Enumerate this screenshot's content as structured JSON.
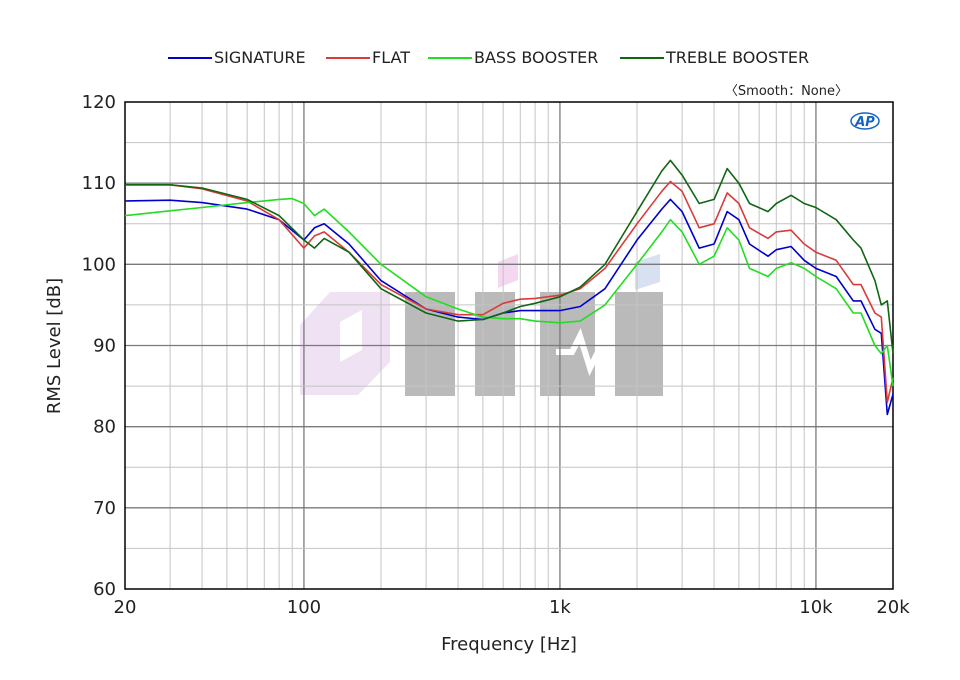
{
  "chart_data": {
    "type": "line",
    "title": "",
    "xlabel": "Frequency [Hz]",
    "ylabel": "RMS Level [dB]",
    "xscale": "log",
    "xlim": [
      20,
      20000
    ],
    "ylim": [
      60,
      120
    ],
    "grid": true,
    "legend_position": "top",
    "annotation": "〈Smooth：None〉",
    "logo_text": "AP",
    "x_ticks": [
      {
        "value": 20,
        "label": "20"
      },
      {
        "value": 100,
        "label": "100"
      },
      {
        "value": 1000,
        "label": "1k"
      },
      {
        "value": 10000,
        "label": "10k"
      },
      {
        "value": 20000,
        "label": "20k"
      }
    ],
    "y_ticks": [
      {
        "value": 60,
        "label": "60"
      },
      {
        "value": 70,
        "label": "70"
      },
      {
        "value": 80,
        "label": "80"
      },
      {
        "value": 90,
        "label": "90"
      },
      {
        "value": 100,
        "label": "100"
      },
      {
        "value": 110,
        "label": "110"
      },
      {
        "value": 120,
        "label": "120"
      }
    ],
    "series": [
      {
        "name": "SIGNATURE",
        "color": "#0000cc",
        "points": [
          [
            20,
            107.8
          ],
          [
            30,
            107.9
          ],
          [
            40,
            107.6
          ],
          [
            60,
            106.8
          ],
          [
            80,
            105.5
          ],
          [
            100,
            103.0
          ],
          [
            110,
            104.5
          ],
          [
            120,
            105.0
          ],
          [
            150,
            102.5
          ],
          [
            200,
            98.0
          ],
          [
            300,
            94.5
          ],
          [
            400,
            93.5
          ],
          [
            500,
            93.2
          ],
          [
            600,
            94.0
          ],
          [
            700,
            94.3
          ],
          [
            800,
            94.3
          ],
          [
            1000,
            94.3
          ],
          [
            1200,
            94.8
          ],
          [
            1500,
            97.0
          ],
          [
            2000,
            103.0
          ],
          [
            2500,
            106.8
          ],
          [
            2700,
            108.0
          ],
          [
            3000,
            106.5
          ],
          [
            3500,
            102.0
          ],
          [
            4000,
            102.5
          ],
          [
            4500,
            106.5
          ],
          [
            5000,
            105.5
          ],
          [
            5500,
            102.5
          ],
          [
            6500,
            101.0
          ],
          [
            7000,
            101.8
          ],
          [
            8000,
            102.2
          ],
          [
            9000,
            100.5
          ],
          [
            10000,
            99.5
          ],
          [
            12000,
            98.5
          ],
          [
            14000,
            95.5
          ],
          [
            15000,
            95.5
          ],
          [
            17000,
            92.0
          ],
          [
            18000,
            91.5
          ],
          [
            19000,
            81.5
          ],
          [
            20000,
            84.0
          ]
        ]
      },
      {
        "name": "FLAT",
        "color": "#d93b3b",
        "points": [
          [
            20,
            109.8
          ],
          [
            30,
            109.8
          ],
          [
            40,
            109.3
          ],
          [
            60,
            107.8
          ],
          [
            80,
            105.5
          ],
          [
            100,
            102.0
          ],
          [
            110,
            103.5
          ],
          [
            120,
            104.0
          ],
          [
            150,
            101.5
          ],
          [
            200,
            97.5
          ],
          [
            300,
            94.5
          ],
          [
            400,
            93.8
          ],
          [
            500,
            93.8
          ],
          [
            600,
            95.2
          ],
          [
            700,
            95.7
          ],
          [
            800,
            95.8
          ],
          [
            1000,
            96.2
          ],
          [
            1200,
            97.0
          ],
          [
            1500,
            99.5
          ],
          [
            2000,
            105.0
          ],
          [
            2500,
            109.0
          ],
          [
            2700,
            110.2
          ],
          [
            3000,
            109.0
          ],
          [
            3500,
            104.5
          ],
          [
            4000,
            105.0
          ],
          [
            4500,
            108.8
          ],
          [
            5000,
            107.5
          ],
          [
            5500,
            104.5
          ],
          [
            6500,
            103.2
          ],
          [
            7000,
            104.0
          ],
          [
            8000,
            104.2
          ],
          [
            9000,
            102.5
          ],
          [
            10000,
            101.5
          ],
          [
            12000,
            100.5
          ],
          [
            14000,
            97.5
          ],
          [
            15000,
            97.5
          ],
          [
            17000,
            94.0
          ],
          [
            18000,
            93.5
          ],
          [
            19000,
            83.0
          ],
          [
            20000,
            86.0
          ]
        ]
      },
      {
        "name": "BASS BOOSTER",
        "color": "#22dd22",
        "points": [
          [
            20,
            106.0
          ],
          [
            30,
            106.6
          ],
          [
            40,
            107.0
          ],
          [
            60,
            107.6
          ],
          [
            80,
            108.0
          ],
          [
            90,
            108.1
          ],
          [
            100,
            107.5
          ],
          [
            110,
            106.0
          ],
          [
            120,
            106.8
          ],
          [
            150,
            104.0
          ],
          [
            200,
            100.0
          ],
          [
            300,
            96.0
          ],
          [
            400,
            94.5
          ],
          [
            500,
            93.5
          ],
          [
            600,
            93.3
          ],
          [
            700,
            93.3
          ],
          [
            800,
            93.0
          ],
          [
            1000,
            92.8
          ],
          [
            1200,
            93.0
          ],
          [
            1500,
            95.0
          ],
          [
            2000,
            100.0
          ],
          [
            2500,
            104.0
          ],
          [
            2700,
            105.5
          ],
          [
            3000,
            104.0
          ],
          [
            3500,
            100.0
          ],
          [
            4000,
            101.0
          ],
          [
            4500,
            104.5
          ],
          [
            5000,
            103.0
          ],
          [
            5500,
            99.5
          ],
          [
            6500,
            98.5
          ],
          [
            7000,
            99.5
          ],
          [
            8000,
            100.2
          ],
          [
            9000,
            99.5
          ],
          [
            10000,
            98.5
          ],
          [
            12000,
            97.0
          ],
          [
            14000,
            94.0
          ],
          [
            15000,
            94.0
          ],
          [
            17000,
            90.0
          ],
          [
            18000,
            89.0
          ],
          [
            19000,
            90.0
          ],
          [
            20000,
            85.0
          ]
        ]
      },
      {
        "name": "TREBLE BOOSTER",
        "color": "#116611",
        "points": [
          [
            20,
            109.8
          ],
          [
            30,
            109.8
          ],
          [
            40,
            109.4
          ],
          [
            60,
            108.0
          ],
          [
            80,
            106.0
          ],
          [
            100,
            103.0
          ],
          [
            110,
            102.0
          ],
          [
            120,
            103.2
          ],
          [
            150,
            101.5
          ],
          [
            200,
            97.0
          ],
          [
            300,
            94.0
          ],
          [
            400,
            93.0
          ],
          [
            500,
            93.2
          ],
          [
            600,
            94.0
          ],
          [
            700,
            94.8
          ],
          [
            800,
            95.2
          ],
          [
            1000,
            96.0
          ],
          [
            1200,
            97.2
          ],
          [
            1500,
            100.0
          ],
          [
            2000,
            106.5
          ],
          [
            2500,
            111.5
          ],
          [
            2700,
            112.8
          ],
          [
            3000,
            111.0
          ],
          [
            3500,
            107.5
          ],
          [
            4000,
            108.0
          ],
          [
            4500,
            111.8
          ],
          [
            5000,
            110.0
          ],
          [
            5500,
            107.5
          ],
          [
            6500,
            106.5
          ],
          [
            7000,
            107.5
          ],
          [
            8000,
            108.5
          ],
          [
            9000,
            107.5
          ],
          [
            10000,
            107.0
          ],
          [
            12000,
            105.5
          ],
          [
            14000,
            103.0
          ],
          [
            15000,
            102.0
          ],
          [
            17000,
            98.0
          ],
          [
            18000,
            95.0
          ],
          [
            19000,
            95.5
          ],
          [
            20000,
            89.0
          ]
        ]
      }
    ]
  }
}
